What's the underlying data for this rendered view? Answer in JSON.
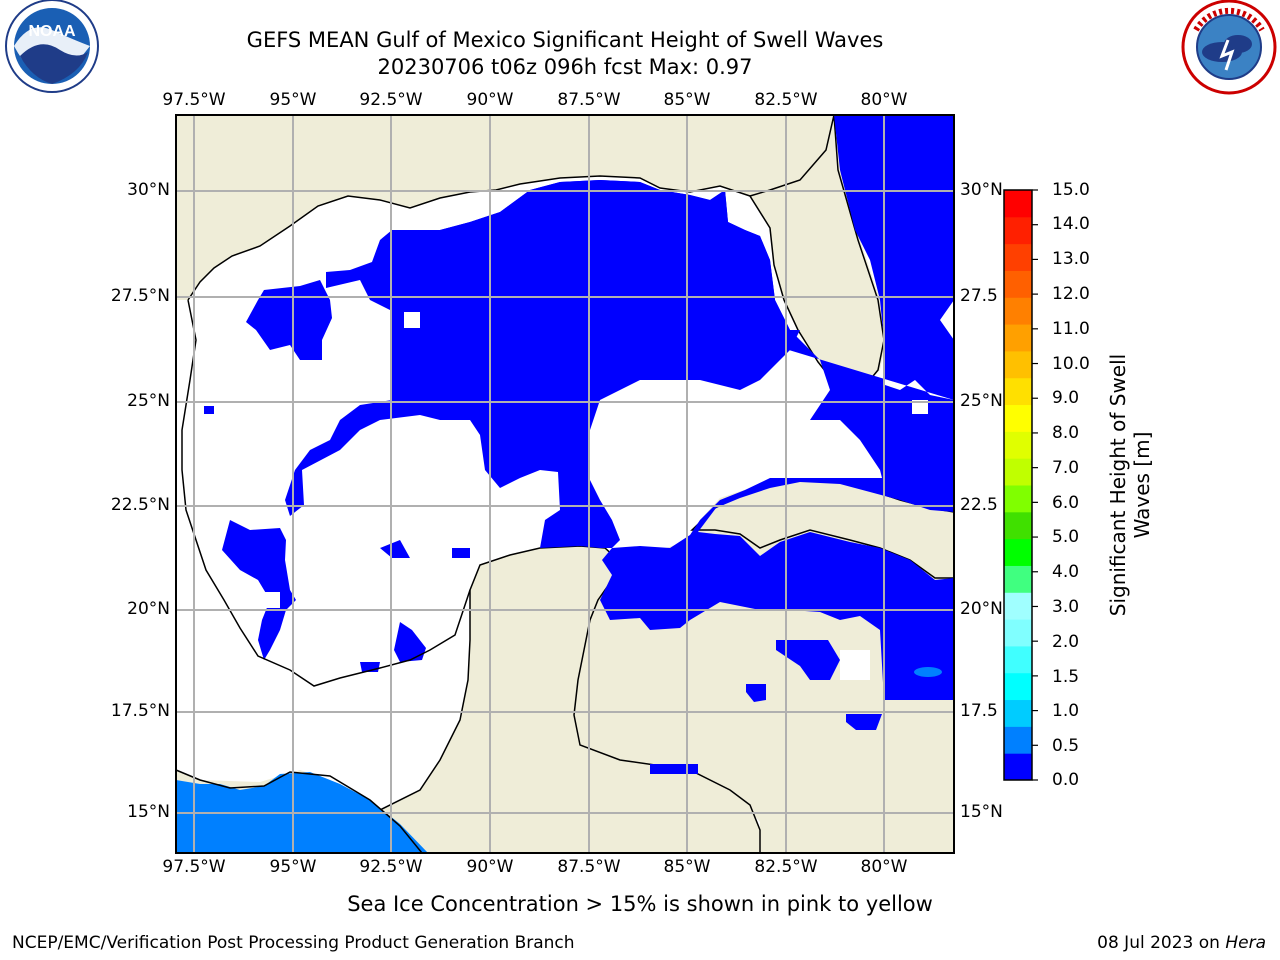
{
  "header": {
    "title_line1": "GEFS MEAN Gulf of Mexico Significant Height of Swell Waves",
    "title_line2": "20230706 t06z 096h fcst   Max: 0.97"
  },
  "logos": {
    "left": "NOAA",
    "right": "NATIONAL WEATHER SERVICE"
  },
  "map": {
    "lon_labels": [
      "97.5°W",
      "95°W",
      "92.5°W",
      "90°W",
      "87.5°W",
      "85°W",
      "82.5°W",
      "80°W"
    ],
    "lat_labels": [
      "30°N",
      "27.5°N",
      "25°N",
      "22.5°N",
      "20°N",
      "17.5°N",
      "15°N"
    ],
    "lat_labels_right": [
      "30°N",
      "27.5",
      "25°N",
      "22.5",
      "20°N",
      "17.5",
      "15°N"
    ],
    "colors": {
      "land": "#efedd8",
      "swell_0_0_5": "#0000ff",
      "swell_0_5_1": "#0080ff",
      "grid": "#b0b0b0"
    }
  },
  "colorbar": {
    "label": "Significant Height of Swell Waves [m]",
    "ticks": [
      "15.0",
      "14.0",
      "13.0",
      "12.0",
      "11.0",
      "10.0",
      "9.0",
      "8.0",
      "7.0",
      "6.0",
      "5.0",
      "4.0",
      "3.0",
      "2.0",
      "1.5",
      "1.0",
      "0.5",
      "0.0"
    ],
    "colors": [
      "#0000ff",
      "#0080ff",
      "#00ccff",
      "#00ffff",
      "#40ffff",
      "#80ffff",
      "#a0ffff",
      "#40ff80",
      "#00ff00",
      "#40e000",
      "#80ff00",
      "#c0ff00",
      "#e0ff00",
      "#ffff00",
      "#ffe000",
      "#ffc000",
      "#ffa000",
      "#ff8000",
      "#ff6000",
      "#ff4000",
      "#ff2000",
      "#ff0000"
    ]
  },
  "footer": {
    "note": "Sea Ice Concentration > 15% is shown in pink to yellow",
    "credit_left": "NCEP/EMC/Verification Post Processing Product Generation Branch",
    "credit_right_date": "08 Jul 2023 on ",
    "credit_right_host": "Hera"
  }
}
